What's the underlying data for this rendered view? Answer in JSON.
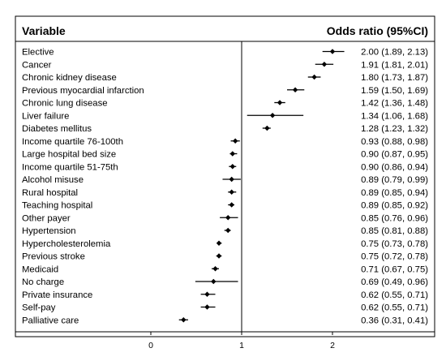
{
  "chart_data": {
    "type": "forest",
    "header": {
      "variable": "Variable",
      "estimate": "Odds ratio (95%CI)"
    },
    "x_ticks": [
      {
        "value": 0,
        "label": "0"
      },
      {
        "value": 1,
        "label": "1"
      },
      {
        "value": 2,
        "label": "2"
      }
    ],
    "xlim": [
      -0.9,
      2.6
    ],
    "reference_line": 1,
    "rows": [
      {
        "label": "Elective",
        "or": 2.0,
        "lo": 1.89,
        "hi": 2.13,
        "text": "2.00 (1.89, 2.13)"
      },
      {
        "label": "Cancer",
        "or": 1.91,
        "lo": 1.81,
        "hi": 2.01,
        "text": "1.91 (1.81, 2.01)"
      },
      {
        "label": "Chronic kidney disease",
        "or": 1.8,
        "lo": 1.73,
        "hi": 1.87,
        "text": "1.80 (1.73, 1.87)"
      },
      {
        "label": "Previous myocardial infarction",
        "or": 1.59,
        "lo": 1.5,
        "hi": 1.69,
        "text": "1.59 (1.50, 1.69)"
      },
      {
        "label": "Chronic lung disease",
        "or": 1.42,
        "lo": 1.36,
        "hi": 1.48,
        "text": "1.42 (1.36, 1.48)"
      },
      {
        "label": "Liver failure",
        "or": 1.34,
        "lo": 1.06,
        "hi": 1.68,
        "text": "1.34 (1.06, 1.68)"
      },
      {
        "label": "Diabetes mellitus",
        "or": 1.28,
        "lo": 1.23,
        "hi": 1.32,
        "text": "1.28 (1.23, 1.32)"
      },
      {
        "label": "Income quartile 76-100th",
        "or": 0.93,
        "lo": 0.88,
        "hi": 0.98,
        "text": "0.93 (0.88, 0.98)"
      },
      {
        "label": "Large hospital bed size",
        "or": 0.9,
        "lo": 0.87,
        "hi": 0.95,
        "text": "0.90 (0.87, 0.95)"
      },
      {
        "label": "Income quartile 51-75th",
        "or": 0.9,
        "lo": 0.86,
        "hi": 0.94,
        "text": "0.90 (0.86, 0.94)"
      },
      {
        "label": "Alcohol misuse",
        "or": 0.89,
        "lo": 0.79,
        "hi": 0.99,
        "text": "0.89 (0.79, 0.99)"
      },
      {
        "label": "Rural hospital",
        "or": 0.89,
        "lo": 0.85,
        "hi": 0.94,
        "text": "0.89 (0.85, 0.94)"
      },
      {
        "label": "Teaching hospital",
        "or": 0.89,
        "lo": 0.85,
        "hi": 0.92,
        "text": "0.89 (0.85, 0.92)"
      },
      {
        "label": "Other payer",
        "or": 0.85,
        "lo": 0.76,
        "hi": 0.96,
        "text": "0.85 (0.76, 0.96)"
      },
      {
        "label": "Hypertension",
        "or": 0.85,
        "lo": 0.81,
        "hi": 0.88,
        "text": "0.85 (0.81, 0.88)"
      },
      {
        "label": "Hypercholesterolemia",
        "or": 0.75,
        "lo": 0.73,
        "hi": 0.78,
        "text": "0.75 (0.73, 0.78)"
      },
      {
        "label": "Previous stroke",
        "or": 0.75,
        "lo": 0.72,
        "hi": 0.78,
        "text": "0.75 (0.72, 0.78)"
      },
      {
        "label": "Medicaid",
        "or": 0.71,
        "lo": 0.67,
        "hi": 0.75,
        "text": "0.71 (0.67, 0.75)"
      },
      {
        "label": "No charge",
        "or": 0.69,
        "lo": 0.49,
        "hi": 0.96,
        "text": "0.69 (0.49, 0.96)"
      },
      {
        "label": "Private insurance",
        "or": 0.62,
        "lo": 0.55,
        "hi": 0.71,
        "text": "0.62 (0.55, 0.71)"
      },
      {
        "label": "Self-pay",
        "or": 0.62,
        "lo": 0.55,
        "hi": 0.71,
        "text": "0.62 (0.55, 0.71)"
      },
      {
        "label": "Palliative care",
        "or": 0.36,
        "lo": 0.31,
        "hi": 0.41,
        "text": "0.36 (0.31, 0.41)"
      }
    ],
    "colors": {
      "marker": "#000000",
      "line": "#000000",
      "frame": "#000000",
      "ghost_text": "#eeeeee"
    },
    "grid": false
  }
}
